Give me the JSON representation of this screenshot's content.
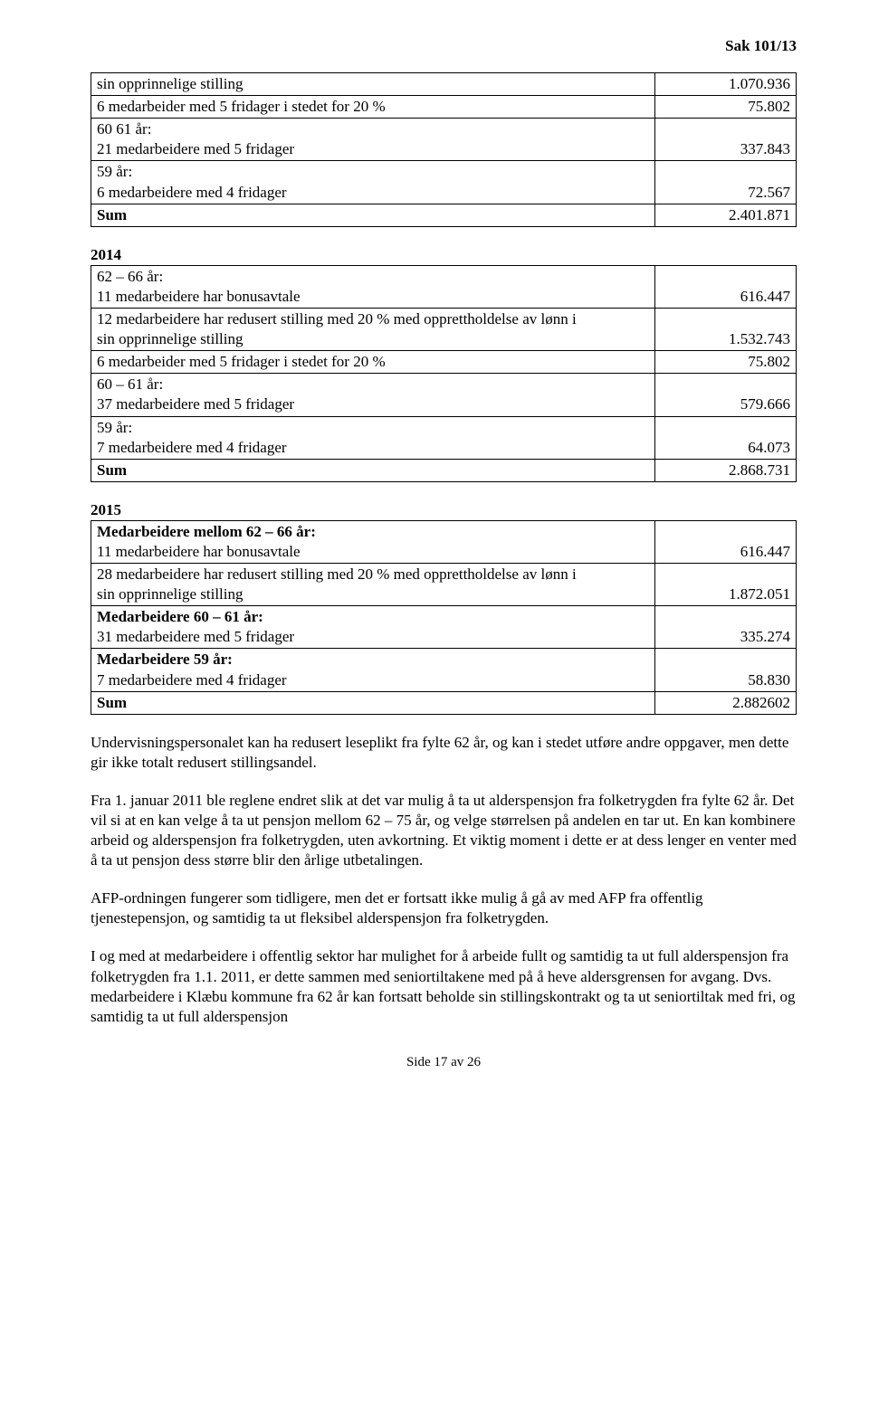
{
  "header": {
    "case_ref": "Sak 101/13"
  },
  "table1": {
    "rows": [
      {
        "label": "sin opprinnelige stilling",
        "value": "1.070.936",
        "bold": false
      },
      {
        "label": "6 medarbeider med 5 fridager i stedet for 20 %",
        "value": "75.802",
        "bold": false
      },
      {
        "label": "60 61 år:\n 21 medarbeidere med 5 fridager",
        "value": "337.843",
        "bold": false
      },
      {
        "label": "59 år:\n6 medarbeidere med 4 fridager",
        "value": "72.567",
        "bold": false
      },
      {
        "label": "Sum",
        "value": "2.401.871",
        "bold": true
      }
    ]
  },
  "table2": {
    "heading": "2014",
    "rows": [
      {
        "label": "62 – 66 år:\n 11 medarbeidere har bonusavtale",
        "value": "616.447",
        "bold": false
      },
      {
        "label": "12 medarbeidere har redusert stilling med 20 % med opprettholdelse av lønn i\nsin opprinnelige stilling",
        "value": "1.532.743",
        "bold": false
      },
      {
        "label": "6 medarbeider med 5 fridager i stedet for 20 %",
        "value": "75.802",
        "bold": false
      },
      {
        "label": "60 – 61 år:\n37 medarbeidere med 5 fridager",
        "value": "579.666",
        "bold": false
      },
      {
        "label": "59 år:\n7 medarbeidere med 4 fridager",
        "value": "64.073",
        "bold": false
      },
      {
        "label": "Sum",
        "value": "2.868.731",
        "bold": true
      }
    ]
  },
  "table3": {
    "heading": "2015",
    "rows": [
      {
        "label": "Medarbeidere mellom 62 – 66 år:\n11 medarbeidere har bonusavtale",
        "value": "616.447",
        "bold_label": true
      },
      {
        "label": "28 medarbeidere har redusert stilling med 20 % med opprettholdelse av lønn i\nsin opprinnelige stilling",
        "value": "1.872.051",
        "bold_label": false
      },
      {
        "label": "Medarbeidere 60 – 61 år:\n 31 medarbeidere med 5 fridager",
        "value": "335.274",
        "bold_label": true
      },
      {
        "label": "Medarbeidere 59 år:\n7 medarbeidere med 4 fridager",
        "value": "58.830",
        "bold_label": true
      },
      {
        "label": "Sum",
        "value": "2.882602",
        "bold_label": true,
        "bold_row": true
      }
    ]
  },
  "paragraphs": {
    "p1": "Undervisningspersonalet kan ha redusert leseplikt fra fylte 62 år, og kan i stedet utføre andre oppgaver, men dette gir ikke totalt redusert stillingsandel.",
    "p2": "Fra 1. januar 2011 ble reglene endret slik at det var mulig å ta ut alderspensjon fra folketrygden fra fylte 62 år. Det vil si at en kan velge å ta ut pensjon mellom 62 – 75 år, og velge størrelsen på andelen en tar ut. En kan kombinere arbeid og alderspensjon fra folketrygden, uten avkortning. Et viktig moment i dette er at dess lenger en venter med å ta ut pensjon dess større blir den årlige utbetalingen.",
    "p3": "AFP-ordningen fungerer som tidligere, men det er fortsatt ikke mulig å gå av med AFP fra offentlig tjenestepensjon, og samtidig ta ut fleksibel alderspensjon fra folketrygden.",
    "p4": "I og med at medarbeidere i offentlig sektor har mulighet for å arbeide fullt og samtidig ta ut full alderspensjon fra folketrygden fra 1.1. 2011, er dette sammen med seniortiltakene med på å heve aldersgrensen for avgang. Dvs. medarbeidere i Klæbu kommune fra 62 år kan fortsatt beholde sin stillingskontrakt og ta ut seniortiltak med fri, og samtidig ta ut full alderspensjon"
  },
  "footer": {
    "text": "Side 17 av 26"
  }
}
